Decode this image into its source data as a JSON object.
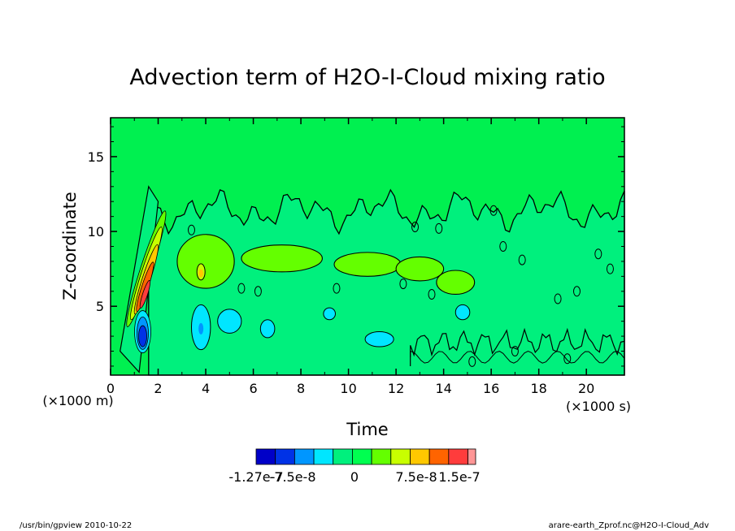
{
  "chart_data": {
    "type": "heatmap",
    "title": "Advection term of H2O-I-Cloud mixing ratio",
    "xlabel": "Time",
    "ylabel": "Z-coordinate",
    "x_unit": "(×1000 s)",
    "y_unit": "(×1000 m)",
    "xlim": [
      0,
      21.6
    ],
    "ylim": [
      0.4,
      17.6
    ],
    "xticks": [
      "0",
      "2",
      "4",
      "6",
      "8",
      "10",
      "12",
      "14",
      "16",
      "18",
      "20"
    ],
    "yticks": [
      "5",
      "10",
      "15"
    ],
    "colorbar": {
      "labels": [
        "-1.27e-7",
        "-7.5e-8",
        "0",
        "7.5e-8",
        "1.5e-7"
      ],
      "colors": [
        "#0000c8",
        "#0032e6",
        "#0096ff",
        "#00e6ff",
        "#00f07d",
        "#00ff50",
        "#64ff00",
        "#c8ff00",
        "#ffc800",
        "#ff6400",
        "#ff3c3c",
        "#ff9696"
      ]
    },
    "background_value_color": "#00f050"
  },
  "footer": {
    "left": "/usr/bin/gpview   2010-10-22",
    "right": "arare-earth_Zprof.nc@H2O-I-Cloud_Adv"
  }
}
